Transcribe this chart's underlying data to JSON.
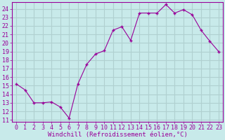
{
  "x": [
    0,
    1,
    2,
    3,
    4,
    5,
    6,
    7,
    8,
    9,
    10,
    11,
    12,
    13,
    14,
    15,
    16,
    17,
    18,
    19,
    20,
    21,
    22,
    23
  ],
  "y": [
    15.2,
    14.5,
    13.0,
    13.0,
    13.1,
    12.5,
    11.2,
    15.2,
    17.5,
    18.7,
    19.1,
    21.5,
    21.9,
    20.3,
    23.5,
    23.5,
    23.5,
    24.5,
    23.5,
    23.9,
    23.3,
    21.5,
    20.2,
    19.0
  ],
  "line_color": "#990099",
  "marker": "+",
  "marker_size": 3,
  "bg_color": "#c8eaea",
  "grid_color": "#b0d0d0",
  "xlabel": "Windchill (Refroidissement éolien,°C)",
  "ylabel_ticks": [
    11,
    12,
    13,
    14,
    15,
    16,
    17,
    18,
    19,
    20,
    21,
    22,
    23,
    24
  ],
  "xlim": [
    -0.5,
    23.5
  ],
  "ylim": [
    10.8,
    24.8
  ],
  "xlabel_fontsize": 6.5,
  "tick_fontsize": 6.0,
  "axis_label_color": "#990099",
  "tick_color": "#990099",
  "line_width": 0.8
}
